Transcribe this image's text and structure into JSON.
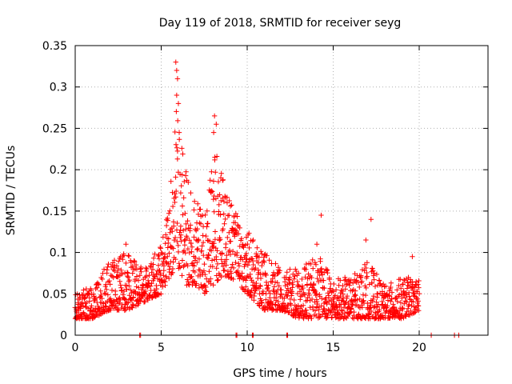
{
  "chart_data": {
    "type": "scatter",
    "title": "Day 119 of 2018, SRMTID for receiver seyg",
    "xlabel": "GPS time / hours",
    "ylabel": "SRMTID / TECUs",
    "xlim": [
      0,
      24
    ],
    "ylim": [
      0,
      0.35
    ],
    "x_ticks": [
      0,
      5,
      10,
      15,
      20
    ],
    "y_ticks": [
      0,
      0.05,
      0.1,
      0.15,
      0.2,
      0.25,
      0.3,
      0.35
    ],
    "x_tick_labels": [
      "0",
      "5",
      "10",
      "15",
      "20"
    ],
    "y_tick_labels": [
      "0",
      "0.05",
      "0.1",
      "0.15",
      "0.2",
      "0.25",
      "0.3",
      "0.35"
    ],
    "grid": true,
    "marker": "+",
    "color": "#ff0000",
    "envelope": {
      "description": "approximate lower/upper bounds of the point cloud, hours vs TECU",
      "x": [
        0.0,
        1.0,
        2.0,
        3.0,
        4.0,
        5.0,
        5.5,
        6.0,
        6.5,
        7.0,
        7.5,
        8.0,
        8.5,
        9.0,
        9.5,
        10.0,
        10.5,
        11.0,
        12.0,
        13.0,
        14.0,
        15.0,
        16.0,
        17.0,
        18.0,
        19.0,
        20.0
      ],
      "lower": [
        0.02,
        0.02,
        0.03,
        0.03,
        0.04,
        0.05,
        0.07,
        0.08,
        0.06,
        0.06,
        0.05,
        0.06,
        0.07,
        0.07,
        0.06,
        0.05,
        0.04,
        0.03,
        0.03,
        0.02,
        0.02,
        0.02,
        0.02,
        0.02,
        0.02,
        0.02,
        0.03
      ],
      "upper": [
        0.05,
        0.06,
        0.09,
        0.1,
        0.08,
        0.11,
        0.18,
        0.3,
        0.2,
        0.17,
        0.14,
        0.24,
        0.2,
        0.17,
        0.14,
        0.13,
        0.11,
        0.1,
        0.08,
        0.08,
        0.1,
        0.07,
        0.07,
        0.09,
        0.06,
        0.07,
        0.07
      ]
    },
    "outliers": [
      {
        "x": 5.85,
        "y": 0.33
      },
      {
        "x": 5.9,
        "y": 0.32
      },
      {
        "x": 5.95,
        "y": 0.31
      },
      {
        "x": 5.9,
        "y": 0.29
      },
      {
        "x": 6.0,
        "y": 0.28
      },
      {
        "x": 8.1,
        "y": 0.265
      },
      {
        "x": 8.2,
        "y": 0.255
      },
      {
        "x": 8.05,
        "y": 0.245
      },
      {
        "x": 14.3,
        "y": 0.145
      },
      {
        "x": 17.2,
        "y": 0.14
      },
      {
        "x": 16.9,
        "y": 0.115
      },
      {
        "x": 2.95,
        "y": 0.11
      },
      {
        "x": 14.05,
        "y": 0.11
      },
      {
        "x": 19.6,
        "y": 0.095
      }
    ],
    "zero_points": [
      3.75,
      3.8,
      9.35,
      9.4,
      10.3,
      10.35,
      12.3,
      12.35,
      20.7,
      22.05,
      22.3
    ],
    "series": [
      {
        "name": "SRMTID",
        "description": "dense scatter of '+' markers from 0 to 20 hours; baseline ~0.02-0.07, strong enhancement ~5.5-10 h peaking ~0.33 near 6 h and ~0.27 near 8 h"
      }
    ]
  }
}
